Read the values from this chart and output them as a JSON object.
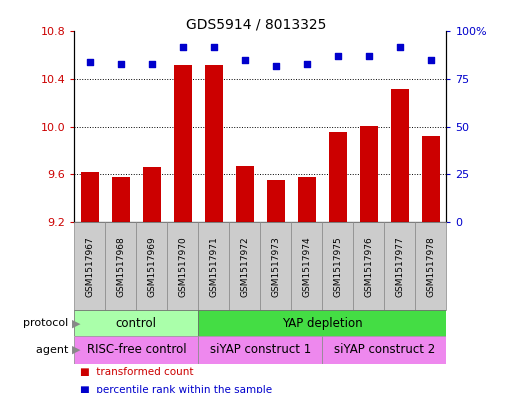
{
  "title": "GDS5914 / 8013325",
  "samples": [
    "GSM1517967",
    "GSM1517968",
    "GSM1517969",
    "GSM1517970",
    "GSM1517971",
    "GSM1517972",
    "GSM1517973",
    "GSM1517974",
    "GSM1517975",
    "GSM1517976",
    "GSM1517977",
    "GSM1517978"
  ],
  "bar_values": [
    9.62,
    9.58,
    9.66,
    10.52,
    10.52,
    9.67,
    9.55,
    9.58,
    9.96,
    10.01,
    10.32,
    9.92
  ],
  "dot_values": [
    84,
    83,
    83,
    92,
    92,
    85,
    82,
    83,
    87,
    87,
    92,
    85
  ],
  "bar_color": "#cc0000",
  "dot_color": "#0000cc",
  "ylim_left": [
    9.2,
    10.8
  ],
  "ylim_right": [
    0,
    100
  ],
  "yticks_left": [
    9.2,
    9.6,
    10.0,
    10.4,
    10.8
  ],
  "yticks_right": [
    0,
    25,
    50,
    75,
    100
  ],
  "ytick_labels_right": [
    "0",
    "25",
    "50",
    "75",
    "100%"
  ],
  "gridlines": [
    9.6,
    10.0,
    10.4
  ],
  "protocol_labels": [
    [
      "control",
      0,
      3
    ],
    [
      "YAP depletion",
      4,
      11
    ]
  ],
  "protocol_colors": [
    "#aaffaa",
    "#44dd44"
  ],
  "agent_labels": [
    [
      "RISC-free control",
      0,
      3
    ],
    [
      "siYAP construct 1",
      4,
      7
    ],
    [
      "siYAP construct 2",
      8,
      11
    ]
  ],
  "agent_color": "#ee88ee",
  "legend_items": [
    {
      "label": "transformed count",
      "color": "#cc0000"
    },
    {
      "label": "percentile rank within the sample",
      "color": "#0000cc"
    }
  ],
  "sample_box_color": "#cccccc",
  "sample_box_edge": "#888888"
}
